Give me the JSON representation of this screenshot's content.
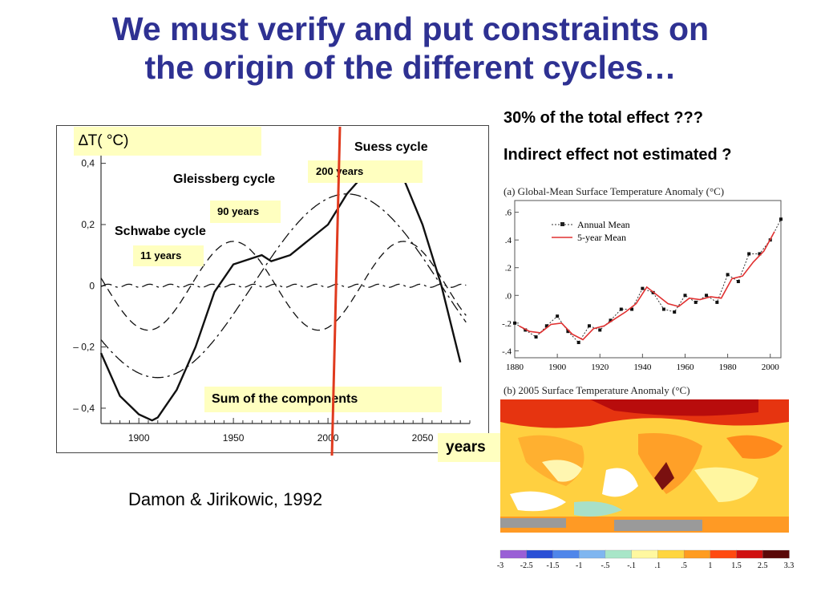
{
  "slide": {
    "title_line1": "We must verify and put constraints on",
    "title_line2": "the origin of the different cycles…",
    "note1": "30% of the total effect  ???",
    "note2": "Indirect effect not estimated  ?",
    "citation": "Damon & Jirikowic, 1992",
    "colors": {
      "title": "#2e3192",
      "label_box": "#ffffc0",
      "marker_line": "#e03a1e"
    }
  },
  "chart_data": [
    {
      "type": "line",
      "title": "",
      "ylabel": "∆T( °C)",
      "xlabel": "years",
      "xlim": [
        1880,
        2075
      ],
      "ylim": [
        -0.45,
        0.42
      ],
      "xticks": [
        1900,
        1950,
        2000,
        2050
      ],
      "xtick_labels": [
        "1900",
        "1950",
        "2000",
        "2050"
      ],
      "yticks": [
        0.4,
        0.2,
        0,
        -0.2,
        -0.4
      ],
      "ytick_labels": [
        "0,4",
        "0,2",
        "0",
        "– 0,2",
        "– 0,4"
      ],
      "marker_year": 2008,
      "annotations": {
        "suess": "Suess cycle",
        "suess_period": "200 years",
        "gleissberg": "Gleissberg cycle",
        "gleissberg_period": "90 years",
        "schwabe": "Schwabe cycle",
        "schwabe_period": "11 years",
        "sum": "Sum of the components"
      },
      "series": [
        {
          "name": "Schwabe cycle",
          "period": 11,
          "amplitude": 0.005,
          "style": "dash-dot"
        },
        {
          "name": "Gleissberg cycle",
          "period": 90,
          "amplitude": 0.145,
          "style": "long-dash"
        },
        {
          "name": "Suess cycle",
          "period": 200,
          "amplitude": 0.3,
          "style": "dash-dot"
        },
        {
          "name": "Sum of the components",
          "style": "solid",
          "x": [
            1880,
            1890,
            1900,
            1907,
            1910,
            1920,
            1930,
            1940,
            1950,
            1960,
            1965,
            1970,
            1980,
            1990,
            2000,
            2010,
            2020,
            2030,
            2040,
            2050,
            2060,
            2070
          ],
          "y": [
            -0.22,
            -0.36,
            -0.42,
            -0.44,
            -0.43,
            -0.34,
            -0.2,
            -0.02,
            0.07,
            0.09,
            0.1,
            0.08,
            0.1,
            0.15,
            0.2,
            0.3,
            0.37,
            0.4,
            0.35,
            0.2,
            0.0,
            -0.25
          ]
        }
      ]
    },
    {
      "type": "line",
      "title": "(a)  Global-Mean Surface Temperature Anomaly (°C)",
      "xlim": [
        1880,
        2005
      ],
      "ylim": [
        -0.45,
        0.65
      ],
      "xticks": [
        1880,
        1900,
        1920,
        1940,
        1960,
        1980,
        2000
      ],
      "xtick_labels": [
        "1880",
        "1900",
        "1920",
        "1940",
        "1960",
        "1980",
        "2000"
      ],
      "yticks": [
        0.6,
        0.4,
        0.2,
        0.0,
        -0.2,
        -0.4
      ],
      "ytick_labels": [
        ".6",
        ".4",
        ".2",
        ".0",
        "-.2",
        "-.4"
      ],
      "legend": [
        "Annual Mean",
        "5-year Mean"
      ],
      "series": [
        {
          "name": "Annual Mean",
          "x": [
            1880,
            1885,
            1890,
            1895,
            1900,
            1905,
            1910,
            1915,
            1920,
            1925,
            1930,
            1935,
            1940,
            1945,
            1950,
            1955,
            1960,
            1965,
            1970,
            1975,
            1980,
            1985,
            1990,
            1995,
            2000,
            2005
          ],
          "y": [
            -0.2,
            -0.25,
            -0.3,
            -0.22,
            -0.15,
            -0.26,
            -0.34,
            -0.22,
            -0.25,
            -0.18,
            -0.1,
            -0.1,
            0.05,
            0.02,
            -0.1,
            -0.12,
            0.0,
            -0.05,
            0.0,
            -0.05,
            0.15,
            0.1,
            0.3,
            0.3,
            0.4,
            0.55
          ]
        },
        {
          "name": "5-year Mean",
          "x": [
            1882,
            1887,
            1892,
            1897,
            1902,
            1907,
            1912,
            1917,
            1922,
            1927,
            1932,
            1937,
            1942,
            1947,
            1952,
            1957,
            1962,
            1967,
            1972,
            1977,
            1982,
            1987,
            1992,
            1997,
            2002
          ],
          "y": [
            -0.22,
            -0.26,
            -0.27,
            -0.21,
            -0.2,
            -0.28,
            -0.32,
            -0.24,
            -0.22,
            -0.17,
            -0.12,
            -0.06,
            0.06,
            0.0,
            -0.06,
            -0.08,
            -0.02,
            -0.03,
            -0.01,
            -0.02,
            0.12,
            0.14,
            0.24,
            0.32,
            0.46
          ]
        }
      ]
    },
    {
      "type": "heatmap",
      "title": "(b)  2005 Surface Temperature Anomaly (°C)",
      "colorbar_labels": [
        "-3",
        "-2.5",
        "-1.5",
        "-1",
        "-.5",
        "-.1",
        ".1",
        ".5",
        "1",
        "1.5",
        "2.5",
        "3.3"
      ],
      "colorbar_colors": [
        "#9a5fd6",
        "#2a4fd6",
        "#4f86ea",
        "#7fb6f0",
        "#a8e6c8",
        "#ffffff",
        "#fff8a0",
        "#ffd640",
        "#ff9c20",
        "#ff4a10",
        "#d01010",
        "#5a0808"
      ]
    }
  ]
}
